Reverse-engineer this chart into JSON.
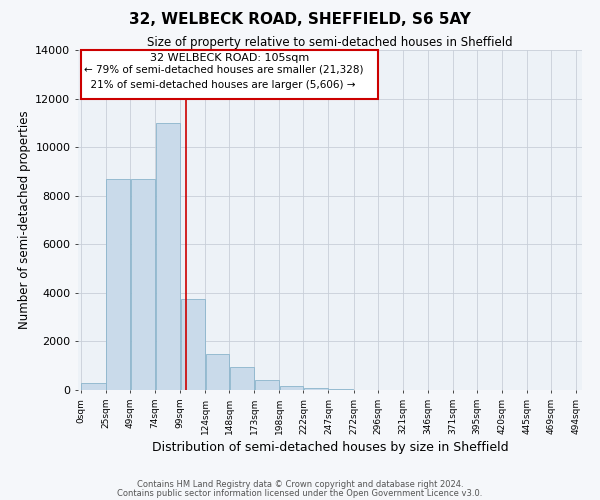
{
  "title": "32, WELBECK ROAD, SHEFFIELD, S6 5AY",
  "subtitle": "Size of property relative to semi-detached houses in Sheffield",
  "xlabel": "Distribution of semi-detached houses by size in Sheffield",
  "ylabel": "Number of semi-detached properties",
  "bin_edges": [
    0,
    25,
    49,
    74,
    99,
    124,
    148,
    173,
    198,
    222,
    247,
    272,
    296,
    321,
    346,
    371,
    395,
    420,
    445,
    469,
    494
  ],
  "bar_heights": [
    300,
    8700,
    8700,
    11000,
    3750,
    1500,
    950,
    400,
    150,
    100,
    50,
    0,
    0,
    0,
    0,
    0,
    0,
    0,
    0,
    0
  ],
  "bar_color": "#c9daea",
  "bar_edge_color": "#8ab4cc",
  "grid_color": "#c8cfd8",
  "background_color": "#edf2f7",
  "fig_background": "#f5f7fa",
  "property_size": 105,
  "property_label": "32 WELBECK ROAD: 105sqm",
  "pct_smaller": 79,
  "pct_larger": 21,
  "n_smaller": 21328,
  "n_larger": 5606,
  "vline_color": "#cc0000",
  "annotation_box_color": "#cc0000",
  "ylim": [
    0,
    14000
  ],
  "yticks": [
    0,
    2000,
    4000,
    6000,
    8000,
    10000,
    12000,
    14000
  ],
  "footnote1": "Contains HM Land Registry data © Crown copyright and database right 2024.",
  "footnote2": "Contains public sector information licensed under the Open Government Licence v3.0."
}
